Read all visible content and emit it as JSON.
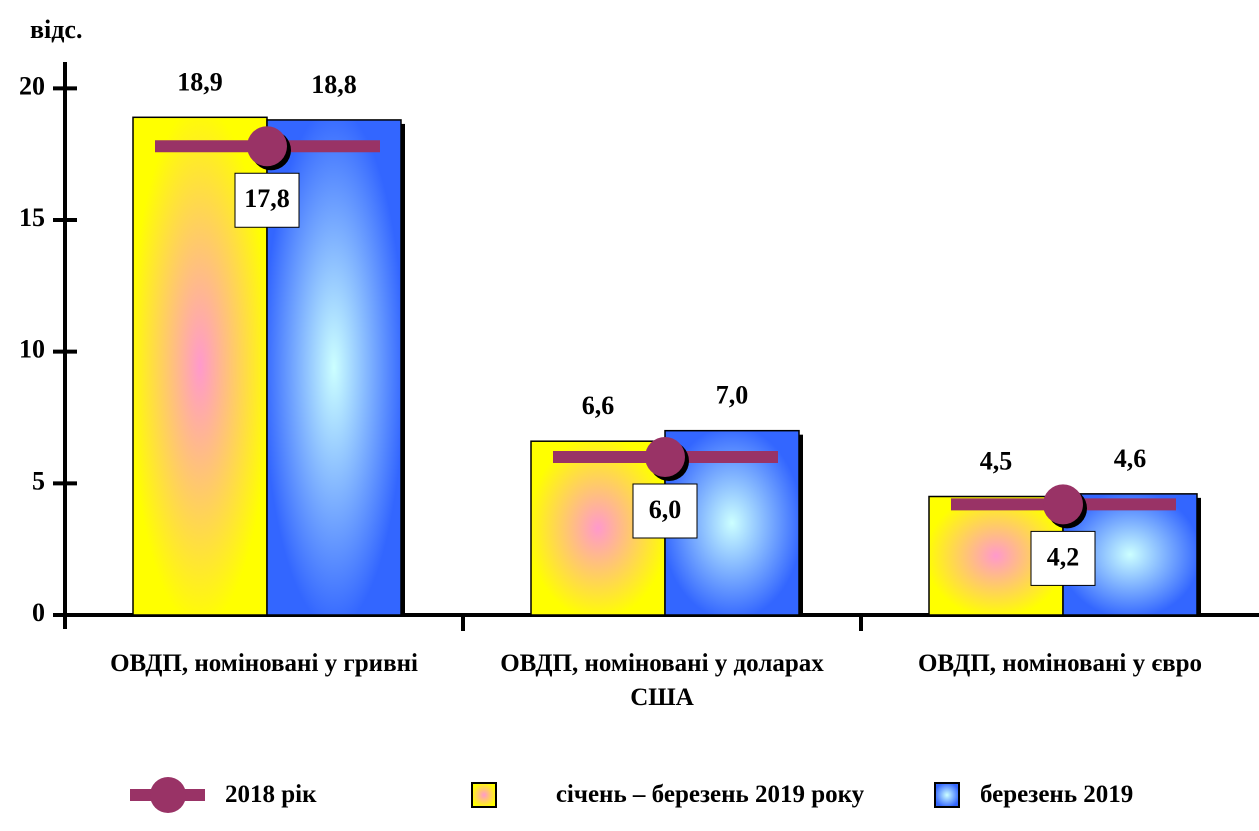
{
  "chart_data": {
    "type": "bar",
    "y_label": "відс.",
    "categories": [
      "ОВДП, номіновані у гривні",
      "ОВДП, номіновані у доларах США",
      "ОВДП, номіновані у євро"
    ],
    "series": [
      {
        "name": "січень – березень 2019 року",
        "color": "#ffff00",
        "values": [
          18.9,
          6.6,
          4.5
        ],
        "value_labels": [
          "18,9",
          "6,6",
          "4,5"
        ]
      },
      {
        "name": "березень 2019",
        "color": "#3366ff",
        "values": [
          18.8,
          7.0,
          4.6
        ],
        "value_labels": [
          "18,8",
          "7,0",
          "4,6"
        ]
      },
      {
        "name": "2018 рік",
        "type": "line",
        "color": "#993366",
        "values": [
          17.8,
          6.0,
          4.2
        ],
        "value_labels": [
          "17,8",
          "6,0",
          "4,2"
        ]
      }
    ],
    "ylim": [
      0,
      21
    ],
    "yticks": [
      0,
      5,
      10,
      15,
      20
    ]
  }
}
